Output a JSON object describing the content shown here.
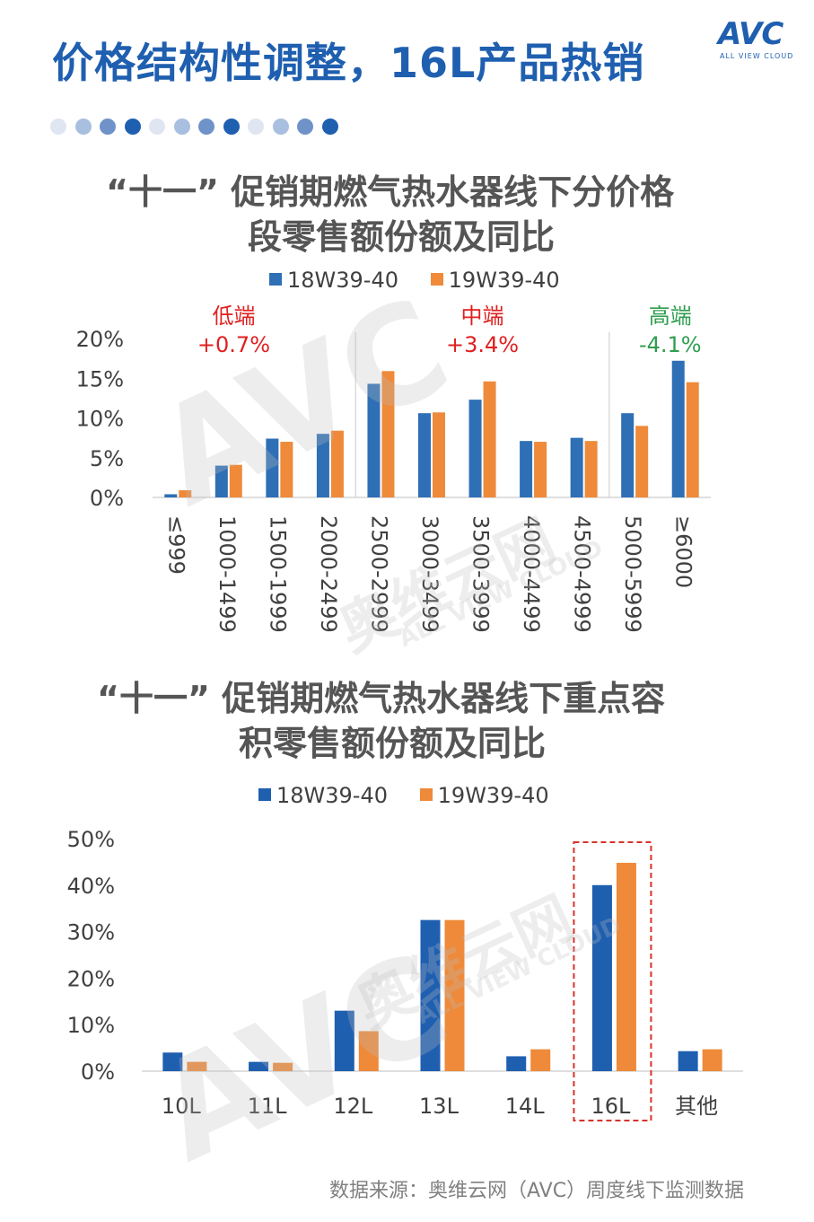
{
  "page_title": "价格结构性调整，16L产品热销",
  "logo": {
    "brand": "AVC",
    "tagline": "ALL VIEW CLOUD"
  },
  "colors": {
    "accent": "#1f5fb0",
    "series_2018": "#2e6fb5",
    "series_2019": "#ee8a3a",
    "red": "#e02020",
    "green": "#2f9e4f",
    "highlight": "#d9312b"
  },
  "dots": [
    "#dfe6f2",
    "#a9bfdf",
    "#6f93c8",
    "#1f5fb0",
    "#dfe6f2",
    "#a9bfdf",
    "#6f93c8",
    "#1f5fb0",
    "#dfe6f2",
    "#a9bfdf",
    "#6f93c8",
    "#1f5fb0"
  ],
  "watermark": {
    "brand": "AVC",
    "cn": "奥维云网",
    "en": "ALL VIEW CLOUD"
  },
  "source": "数据来源：奥维云网（AVC）周度线下监测数据",
  "chart_data": [
    {
      "type": "bar",
      "title_line1": "“十一” 促销期燃气热水器线下分价格",
      "title_line2": "段零售额份额及同比",
      "series": [
        {
          "name": "18W39-40",
          "values": [
            0.4,
            4.0,
            7.4,
            8.0,
            14.3,
            10.6,
            12.3,
            7.1,
            7.5,
            10.6,
            17.2
          ]
        },
        {
          "name": "19W39-40",
          "values": [
            0.9,
            4.1,
            7.0,
            8.4,
            15.9,
            10.7,
            14.6,
            7.0,
            7.1,
            9.0,
            14.5
          ]
        }
      ],
      "categories": [
        "≤999",
        "1000-1499",
        "1500-1999",
        "2000-2499",
        "2500-2999",
        "3000-3499",
        "3500-3999",
        "4000-4499",
        "4500-4999",
        "5000-5999",
        "≥6000"
      ],
      "yticks": [
        "0%",
        "5%",
        "10%",
        "15%",
        "20%"
      ],
      "ylim": [
        0,
        20
      ],
      "segments": [
        {
          "label": "低端",
          "change": "+0.7%",
          "color": "#e02020"
        },
        {
          "label": "中端",
          "change": "+3.4%",
          "color": "#e02020"
        },
        {
          "label": "高端",
          "change": "-4.1%",
          "color": "#2f9e4f"
        }
      ]
    },
    {
      "type": "bar",
      "title_line1": "“十一” 促销期燃气热水器线下重点容",
      "title_line2": "积零售额份额及同比",
      "series": [
        {
          "name": "18W39-40",
          "values": [
            4.0,
            2.0,
            13.0,
            32.5,
            3.2,
            40.0,
            4.3
          ]
        },
        {
          "name": "19W39-40",
          "values": [
            2.0,
            1.8,
            8.6,
            32.5,
            4.7,
            44.8,
            4.7
          ]
        }
      ],
      "categories": [
        "10L",
        "11L",
        "12L",
        "13L",
        "14L",
        "16L",
        "其他"
      ],
      "yticks": [
        "0%",
        "10%",
        "20%",
        "30%",
        "40%",
        "50%"
      ],
      "ylim": [
        0,
        50
      ],
      "highlight_category": "16L"
    }
  ]
}
